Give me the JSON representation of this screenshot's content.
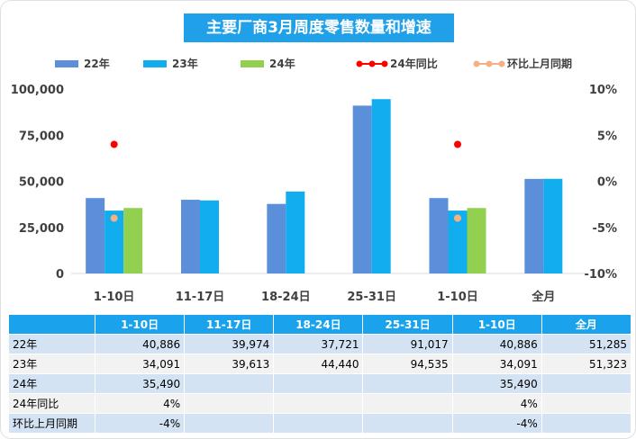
{
  "chart_data": {
    "type": "bar",
    "title": "主要厂商3月周度零售数量和增速",
    "categories": [
      "1-10日",
      "11-17日",
      "18-24日",
      "25-31日",
      "1-10日",
      "全月"
    ],
    "series": [
      {
        "name": "22年",
        "kind": "bar",
        "color": "#5b8fd9",
        "values": [
          40886,
          39974,
          37721,
          91017,
          40886,
          51285
        ]
      },
      {
        "name": "23年",
        "kind": "bar",
        "color": "#11adef",
        "values": [
          34091,
          39613,
          44440,
          94535,
          34091,
          51323
        ]
      },
      {
        "name": "24年",
        "kind": "bar",
        "color": "#92d050",
        "values": [
          35490,
          null,
          null,
          null,
          35490,
          null
        ]
      },
      {
        "name": "24年同比",
        "kind": "dot",
        "axis": "right",
        "color": "#ff0000",
        "values": [
          4,
          null,
          null,
          null,
          4,
          null
        ]
      },
      {
        "name": "环比上月同期",
        "kind": "dot",
        "axis": "right",
        "color": "#f4b183",
        "values": [
          -4,
          null,
          null,
          null,
          -4,
          null
        ]
      }
    ],
    "ylim": [
      0,
      100000
    ],
    "yticks": [
      "0",
      "25,000",
      "50,000",
      "75,000",
      "100,000"
    ],
    "y2lim": [
      -10,
      10
    ],
    "y2ticks": [
      "-10%",
      "-5%",
      "0%",
      "5%",
      "10%"
    ],
    "legend_position": "top"
  },
  "table": {
    "header": [
      "",
      "1-10日",
      "11-17日",
      "18-24日",
      "25-31日",
      "1-10日",
      "全月"
    ],
    "rows": [
      [
        "22年",
        "40,886",
        "39,974",
        "37,721",
        "91,017",
        "40,886",
        "51,285"
      ],
      [
        "23年",
        "34,091",
        "39,613",
        "44,440",
        "94,535",
        "34,091",
        "51,323"
      ],
      [
        "24年",
        "35,490",
        "",
        "",
        "",
        "35,490",
        ""
      ],
      [
        "24年同比",
        "4%",
        "",
        "",
        "",
        "4%",
        ""
      ],
      [
        "环比上月同期",
        "-4%",
        "",
        "",
        "",
        "-4%",
        ""
      ]
    ]
  }
}
